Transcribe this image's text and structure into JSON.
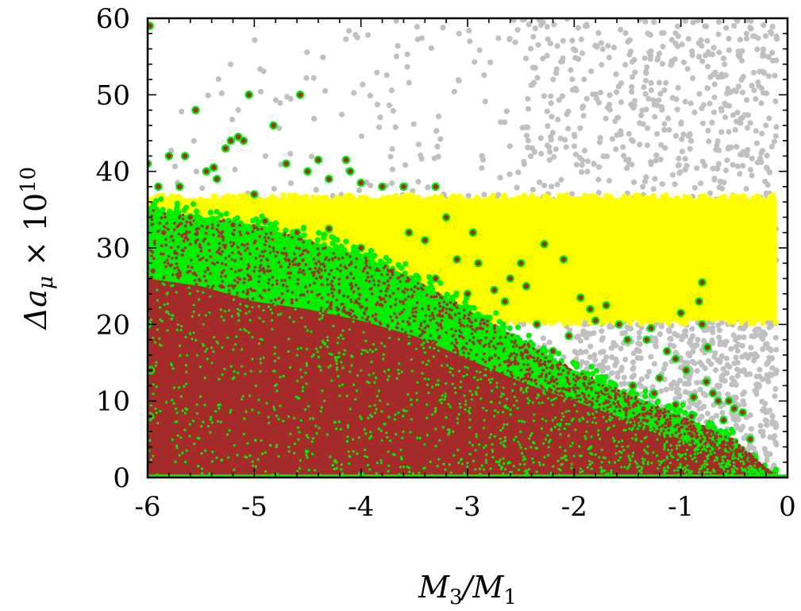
{
  "chart_data": {
    "type": "scatter",
    "xlabel_parts": [
      "M",
      "3",
      "/M",
      "1"
    ],
    "ylabel_parts": [
      "Δa",
      "μ",
      " × 10",
      "10"
    ],
    "xlim": [
      -6,
      0
    ],
    "ylim": [
      0,
      60
    ],
    "x_ticks": [
      -6,
      -5,
      -4,
      -3,
      -2,
      -1,
      0
    ],
    "y_ticks": [
      0,
      10,
      20,
      30,
      40,
      50,
      60
    ],
    "x_tick_labels": [
      "-6",
      "-5",
      "-4",
      "-3",
      "-2",
      "-1",
      "0"
    ],
    "y_tick_labels": [
      "0",
      "10",
      "20",
      "30",
      "40",
      "50",
      "60"
    ],
    "grid": false,
    "legend": "none",
    "colors": {
      "gray": "#c0c0c0",
      "yellow": "#ffff00",
      "green": "#00ee00",
      "brown": "#a52a2a"
    },
    "bands": {
      "gray_upper_envelope": [
        [
          -6,
          44
        ],
        [
          -5,
          58
        ],
        [
          -4,
          60
        ],
        [
          -3,
          60
        ],
        [
          -2,
          60
        ],
        [
          -1,
          60
        ],
        [
          -0.1,
          60
        ]
      ],
      "yellow_band": {
        "x": [
          -6,
          -0.1
        ],
        "y": [
          20.5,
          36.5
        ]
      },
      "green_upper_envelope": [
        [
          -6,
          35
        ],
        [
          -5.5,
          34
        ],
        [
          -5,
          33
        ],
        [
          -4.5,
          31
        ],
        [
          -4,
          29
        ],
        [
          -3.5,
          26
        ],
        [
          -3,
          22
        ],
        [
          -2.5,
          18
        ],
        [
          -2,
          14
        ],
        [
          -1.5,
          11
        ],
        [
          -1,
          8
        ],
        [
          -0.5,
          5
        ],
        [
          -0.15,
          0.5
        ]
      ],
      "brown_upper_envelope": [
        [
          -6,
          26
        ],
        [
          -5.5,
          25
        ],
        [
          -5,
          23
        ],
        [
          -4.5,
          22
        ],
        [
          -4,
          20.5
        ],
        [
          -3.5,
          18.5
        ],
        [
          -3,
          15.5
        ],
        [
          -2.5,
          12.5
        ],
        [
          -2,
          10
        ],
        [
          -1.5,
          7.5
        ],
        [
          -1,
          5
        ],
        [
          -0.5,
          3
        ],
        [
          -0.15,
          0.5
        ]
      ]
    },
    "series": [
      {
        "values": [
          [
            -5.98,
            59
          ],
          [
            -5.55,
            48
          ],
          [
            -5.27,
            43
          ],
          [
            -5.22,
            44
          ],
          [
            -5.15,
            44.5
          ],
          [
            -5.1,
            44
          ],
          [
            -5.05,
            50
          ],
          [
            -4.57,
            50
          ],
          [
            -4.82,
            46
          ],
          [
            -4.7,
            41
          ],
          [
            -4.5,
            40
          ],
          [
            -4.4,
            41.5
          ],
          [
            -4.3,
            39
          ],
          [
            -4.14,
            41.5
          ],
          [
            -4.1,
            40
          ],
          [
            -4.0,
            38.5
          ],
          [
            -3.8,
            38
          ],
          [
            -3.6,
            38
          ],
          [
            -3.3,
            38
          ],
          [
            -5.8,
            42
          ],
          [
            -5.65,
            42
          ],
          [
            -5.45,
            40
          ],
          [
            -5.38,
            40.5
          ],
          [
            -5.35,
            39
          ],
          [
            -5.0,
            37
          ],
          [
            -5.9,
            38
          ],
          [
            -6.0,
            41
          ],
          [
            -5.7,
            38
          ],
          [
            -2.28,
            30.5
          ],
          [
            -2.1,
            28.5
          ],
          [
            -1.94,
            23.5
          ],
          [
            -1.85,
            22
          ],
          [
            -1.8,
            20.5
          ],
          [
            -1.7,
            22.5
          ],
          [
            -1.58,
            20
          ],
          [
            -1.5,
            18
          ],
          [
            -1.32,
            18
          ],
          [
            -1.28,
            19.5
          ],
          [
            -1.13,
            16.5
          ],
          [
            -1.05,
            15.5
          ],
          [
            -0.95,
            14
          ],
          [
            -1.0,
            21.5
          ],
          [
            -0.8,
            25.5
          ],
          [
            -0.83,
            23
          ],
          [
            -0.8,
            20
          ],
          [
            -0.75,
            17
          ],
          [
            -0.76,
            12.5
          ],
          [
            -0.7,
            11
          ],
          [
            -0.65,
            10
          ],
          [
            -0.55,
            10
          ],
          [
            -0.5,
            9
          ],
          [
            -0.42,
            8.5
          ],
          [
            -1.9,
            13
          ],
          [
            -1.7,
            11.5
          ],
          [
            -1.2,
            13
          ],
          [
            -2.6,
            26
          ],
          [
            -2.5,
            28
          ],
          [
            -2.65,
            23
          ],
          [
            -2.9,
            28
          ],
          [
            -3.1,
            28.5
          ],
          [
            -3.2,
            34
          ],
          [
            -3.4,
            31
          ],
          [
            -2.95,
            32
          ],
          [
            -3.55,
            32
          ],
          [
            -2.45,
            25
          ],
          [
            -2.35,
            20
          ],
          [
            -1.35,
            9
          ],
          [
            -1.05,
            9.5
          ],
          [
            -0.9,
            8
          ],
          [
            -0.6,
            7.5
          ],
          [
            -1.45,
            12
          ],
          [
            -2.2,
            16.5
          ],
          [
            -2.05,
            18.5
          ],
          [
            -1.25,
            11
          ],
          [
            -0.88,
            10.5
          ],
          [
            -0.35,
            5
          ],
          [
            -3.0,
            24
          ],
          [
            -2.75,
            24.5
          ],
          [
            -3.3,
            26
          ],
          [
            -4.0,
            30
          ],
          [
            -4.3,
            32.5
          ],
          [
            -4.6,
            32
          ],
          [
            -4.9,
            33.5
          ],
          [
            -5.2,
            33
          ],
          [
            -5.6,
            34
          ],
          [
            -5.85,
            32
          ],
          [
            -5.95,
            27
          ],
          [
            -6.0,
            20
          ],
          [
            -5.97,
            14
          ],
          [
            -5.98,
            8
          ]
        ],
        "color": "#00ee00",
        "inner": "#a52a2a"
      }
    ]
  }
}
